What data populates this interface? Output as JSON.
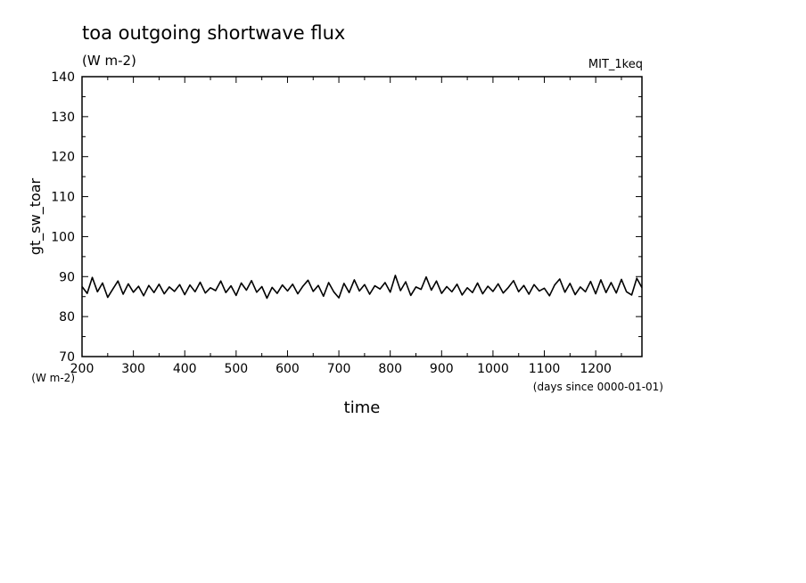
{
  "chart_data": {
    "type": "line",
    "title": "toa outgoing shortwave flux",
    "subtitle": "(W m-2)",
    "run_label": "MIT_1keq",
    "xlabel": "time",
    "x_units": "(days since 0000-01-01)",
    "ylabel": "gt_sw_toar",
    "y_units": "(W m-2)",
    "xlim": [
      200,
      1290
    ],
    "ylim": [
      70,
      140
    ],
    "x_ticks": [
      200,
      300,
      400,
      500,
      600,
      700,
      800,
      900,
      1000,
      1100,
      1200
    ],
    "y_ticks": [
      70,
      80,
      90,
      100,
      110,
      120,
      130,
      140
    ],
    "series": [
      {
        "color": "#000000",
        "points": [
          [
            200,
            87.5
          ],
          [
            210,
            85.8
          ],
          [
            220,
            89.8
          ],
          [
            230,
            86.2
          ],
          [
            240,
            88.4
          ],
          [
            250,
            84.8
          ],
          [
            260,
            86.9
          ],
          [
            270,
            88.9
          ],
          [
            280,
            85.6
          ],
          [
            290,
            88.2
          ],
          [
            300,
            86.1
          ],
          [
            310,
            87.6
          ],
          [
            320,
            85.2
          ],
          [
            330,
            87.8
          ],
          [
            340,
            86.0
          ],
          [
            350,
            88.1
          ],
          [
            360,
            85.7
          ],
          [
            370,
            87.4
          ],
          [
            380,
            86.3
          ],
          [
            390,
            88.0
          ],
          [
            400,
            85.5
          ],
          [
            410,
            87.9
          ],
          [
            420,
            86.2
          ],
          [
            430,
            88.6
          ],
          [
            440,
            85.9
          ],
          [
            450,
            87.2
          ],
          [
            460,
            86.5
          ],
          [
            470,
            88.9
          ],
          [
            480,
            86.0
          ],
          [
            490,
            87.7
          ],
          [
            500,
            85.3
          ],
          [
            510,
            88.4
          ],
          [
            520,
            86.6
          ],
          [
            530,
            89.0
          ],
          [
            540,
            86.1
          ],
          [
            550,
            87.5
          ],
          [
            560,
            84.6
          ],
          [
            570,
            87.3
          ],
          [
            580,
            85.8
          ],
          [
            590,
            87.9
          ],
          [
            600,
            86.4
          ],
          [
            610,
            88.1
          ],
          [
            620,
            85.7
          ],
          [
            630,
            87.6
          ],
          [
            640,
            89.1
          ],
          [
            650,
            86.3
          ],
          [
            660,
            87.8
          ],
          [
            670,
            85.1
          ],
          [
            680,
            88.5
          ],
          [
            690,
            86.2
          ],
          [
            700,
            84.7
          ],
          [
            710,
            88.3
          ],
          [
            720,
            86.0
          ],
          [
            730,
            89.2
          ],
          [
            740,
            86.4
          ],
          [
            750,
            88.0
          ],
          [
            760,
            85.6
          ],
          [
            770,
            87.7
          ],
          [
            780,
            86.9
          ],
          [
            790,
            88.5
          ],
          [
            800,
            86.1
          ],
          [
            810,
            90.3
          ],
          [
            820,
            86.5
          ],
          [
            830,
            88.7
          ],
          [
            840,
            85.3
          ],
          [
            850,
            87.4
          ],
          [
            860,
            86.8
          ],
          [
            870,
            89.9
          ],
          [
            880,
            86.6
          ],
          [
            890,
            88.9
          ],
          [
            900,
            85.8
          ],
          [
            910,
            87.5
          ],
          [
            920,
            86.2
          ],
          [
            930,
            88.1
          ],
          [
            940,
            85.4
          ],
          [
            950,
            87.2
          ],
          [
            960,
            86.0
          ],
          [
            970,
            88.4
          ],
          [
            980,
            85.7
          ],
          [
            990,
            87.6
          ],
          [
            1000,
            86.3
          ],
          [
            1010,
            88.2
          ],
          [
            1020,
            85.9
          ],
          [
            1030,
            87.3
          ],
          [
            1040,
            89.0
          ],
          [
            1050,
            86.2
          ],
          [
            1060,
            87.8
          ],
          [
            1070,
            85.6
          ],
          [
            1080,
            88.0
          ],
          [
            1090,
            86.4
          ],
          [
            1100,
            87.1
          ],
          [
            1110,
            85.2
          ],
          [
            1120,
            87.9
          ],
          [
            1130,
            89.4
          ],
          [
            1140,
            86.1
          ],
          [
            1150,
            88.3
          ],
          [
            1160,
            85.5
          ],
          [
            1170,
            87.4
          ],
          [
            1180,
            86.2
          ],
          [
            1190,
            88.8
          ],
          [
            1200,
            85.7
          ],
          [
            1210,
            89.2
          ],
          [
            1220,
            86.0
          ],
          [
            1230,
            88.5
          ],
          [
            1240,
            85.9
          ],
          [
            1250,
            89.3
          ],
          [
            1260,
            86.2
          ],
          [
            1270,
            85.4
          ],
          [
            1280,
            89.6
          ],
          [
            1290,
            87.2
          ]
        ]
      }
    ],
    "grid": false,
    "legend": "none"
  }
}
